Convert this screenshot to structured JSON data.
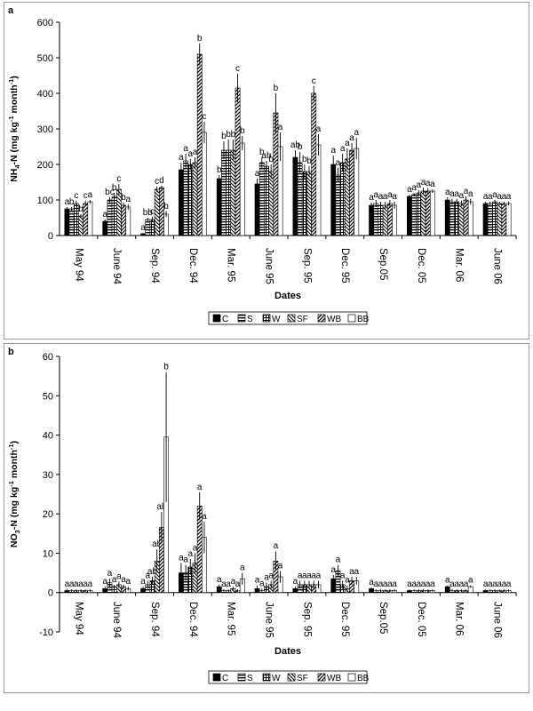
{
  "chart_data": [
    {
      "panel": "a",
      "type": "bar",
      "ylabel": "NH4-N (mg kg-1 month-1)",
      "xlabel": "Dates",
      "ylim": [
        0,
        600
      ],
      "yticks": [
        0,
        100,
        200,
        300,
        400,
        500,
        600
      ],
      "grid": false,
      "legend_position": "bottom",
      "categories": [
        "May 94",
        "June 94",
        "Sep. 94",
        "Dec. 94",
        "Mar. 95",
        "June 95",
        "Sep. 95",
        "Dec. 95",
        "Sep.05",
        "Dec. 05",
        "Mar. 06",
        "June 06"
      ],
      "series": [
        {
          "name": "C",
          "values": [
            75,
            40,
            5,
            185,
            160,
            145,
            220,
            200,
            85,
            110,
            100,
            90
          ],
          "errors": [
            5,
            5,
            3,
            20,
            10,
            15,
            20,
            25,
            8,
            5,
            8,
            5
          ]
        },
        {
          "name": "S",
          "values": [
            75,
            100,
            45,
            210,
            240,
            205,
            205,
            170,
            90,
            115,
            95,
            90
          ],
          "errors": [
            5,
            8,
            5,
            20,
            25,
            15,
            30,
            20,
            10,
            5,
            8,
            5
          ]
        },
        {
          "name": "W",
          "values": [
            90,
            110,
            45,
            200,
            240,
            195,
            180,
            205,
            85,
            120,
            95,
            95
          ],
          "errors": [
            8,
            10,
            8,
            15,
            30,
            15,
            20,
            25,
            10,
            8,
            8,
            5
          ]
        },
        {
          "name": "SF",
          "values": [
            55,
            130,
            130,
            205,
            240,
            180,
            180,
            215,
            85,
            125,
            90,
            90
          ],
          "errors": [
            5,
            15,
            8,
            15,
            30,
            20,
            15,
            30,
            10,
            10,
            8,
            5
          ]
        },
        {
          "name": "WB",
          "values": [
            90,
            85,
            135,
            510,
            415,
            345,
            400,
            240,
            90,
            125,
            100,
            90
          ],
          "errors": [
            8,
            8,
            5,
            30,
            40,
            55,
            20,
            20,
            10,
            8,
            10,
            5
          ]
        },
        {
          "name": "BB",
          "values": [
            95,
            80,
            60,
            290,
            260,
            250,
            255,
            245,
            85,
            125,
            95,
            90
          ],
          "errors": [
            5,
            8,
            8,
            30,
            20,
            40,
            30,
            30,
            10,
            5,
            8,
            5
          ]
        }
      ],
      "annotations": [
        [
          "a",
          "b",
          "c",
          "b",
          "c",
          "a"
        ],
        [
          "a",
          "bc",
          "b",
          "c",
          "b",
          "a"
        ],
        [
          "a",
          "bb",
          "c",
          "c",
          "d",
          "b"
        ],
        [
          "a",
          "a",
          "a",
          "a",
          "b",
          "c"
        ],
        [
          "b",
          "b",
          "b",
          "b",
          "c",
          "b"
        ],
        [
          "a",
          "b",
          "ab",
          "b",
          "b",
          "a"
        ],
        [
          "ab",
          "b",
          "b",
          "b",
          "c",
          "a"
        ],
        [
          "a",
          "a",
          "a",
          "a",
          "a",
          "a"
        ],
        [
          "a",
          "a",
          "a",
          "a",
          "a",
          "a"
        ],
        [
          "a",
          "a",
          "a",
          "a",
          "a",
          "a"
        ],
        [
          "a",
          "a",
          "a",
          "a",
          "a",
          "a"
        ],
        [
          "a",
          "a",
          "a",
          "a",
          "a",
          "a"
        ]
      ]
    },
    {
      "panel": "b",
      "type": "bar",
      "ylabel": "NO3-N (mg kg-1 month-1)",
      "xlabel": "Dates",
      "ylim": [
        -10,
        60
      ],
      "yticks": [
        -10,
        0,
        10,
        20,
        30,
        40,
        50,
        60
      ],
      "grid": false,
      "legend_position": "bottom",
      "categories": [
        "May 94",
        "June 94",
        "Sep. 94",
        "Dec. 94",
        "Mar. 95",
        "June 95",
        "Sep. 95",
        "Dec. 95",
        "Sep.05",
        "Dec. 05",
        "Mar. 06",
        "June 06"
      ],
      "series": [
        {
          "name": "C",
          "values": [
            0.5,
            1,
            1,
            5,
            1.5,
            1,
            1,
            3.5,
            1,
            0.5,
            1.5,
            0.5
          ],
          "errors": [
            0.3,
            0.5,
            0.5,
            2.5,
            0.5,
            0.8,
            0.5,
            1,
            0.3,
            0.3,
            0.3,
            0.3
          ]
        },
        {
          "name": "S",
          "values": [
            0.5,
            2.5,
            2,
            5,
            0.5,
            0.5,
            2,
            5.5,
            0.5,
            0.5,
            0.5,
            0.5
          ],
          "errors": [
            0.3,
            1,
            1,
            2,
            0.3,
            0.5,
            1,
            1.5,
            0.3,
            0.3,
            0.3,
            0.3
          ]
        },
        {
          "name": "W",
          "values": [
            0.5,
            1.5,
            3,
            6.5,
            0.5,
            1.5,
            2,
            2,
            0.5,
            0.5,
            0.5,
            0.5
          ],
          "errors": [
            0.3,
            0.5,
            1,
            2,
            0.3,
            1,
            1,
            1,
            0.3,
            0.3,
            0.3,
            0.3
          ]
        },
        {
          "name": "SF",
          "values": [
            0.5,
            2,
            8,
            7.5,
            1,
            2,
            2,
            1,
            0.5,
            0.5,
            0.5,
            0.5
          ],
          "errors": [
            0.3,
            0.8,
            3,
            2.5,
            0.5,
            1,
            1,
            0.8,
            0.3,
            0.3,
            0.3,
            0.3
          ]
        },
        {
          "name": "WB",
          "values": [
            0.5,
            1.5,
            16.5,
            22,
            0.5,
            8,
            2,
            3,
            0.5,
            0.5,
            0.5,
            0.5
          ],
          "errors": [
            0.3,
            0.5,
            4,
            3.5,
            0.3,
            2.5,
            1,
            1,
            0.3,
            0.3,
            0.3,
            0.3
          ]
        },
        {
          "name": "BB",
          "values": [
            0.5,
            1,
            39.5,
            14,
            3.5,
            4,
            2,
            3,
            0.5,
            0.5,
            1.5,
            0.5
          ],
          "errors": [
            0.3,
            0.5,
            16.5,
            4,
            1.5,
            1.5,
            1,
            1,
            0.3,
            0.3,
            0.3,
            0.3
          ]
        }
      ],
      "annotations": [
        [
          "a",
          "a",
          "a",
          "a",
          "a",
          "a"
        ],
        [
          "a",
          "a",
          "a",
          "a",
          "a",
          "a"
        ],
        [
          "a",
          "a",
          "ab",
          "ab",
          "ab",
          "b"
        ],
        [
          "a",
          "a",
          "a",
          "a",
          "a",
          "a"
        ],
        [
          "a",
          "a",
          "a",
          "a",
          "a",
          "a"
        ],
        [
          "a",
          "a",
          "a",
          "a",
          "a",
          "a"
        ],
        [
          "a",
          "a",
          "a",
          "a",
          "a",
          "a"
        ],
        [
          "a",
          "a",
          "a",
          "a",
          "a",
          "a"
        ],
        [
          "a",
          "a",
          "a",
          "a",
          "a",
          "a"
        ],
        [
          "a",
          "a",
          "a",
          "a",
          "a",
          "a"
        ],
        [
          "a",
          "a",
          "a",
          "a",
          "a",
          "a"
        ],
        [
          "a",
          "a",
          "a",
          "a",
          "a",
          "a"
        ]
      ]
    }
  ],
  "panels": {
    "a": {
      "letter": "a"
    },
    "b": {
      "letter": "b"
    }
  },
  "legend": {
    "items": [
      {
        "label": "C",
        "pattern": "solid"
      },
      {
        "label": "S",
        "pattern": "hlines"
      },
      {
        "label": "W",
        "pattern": "grid"
      },
      {
        "label": "SF",
        "pattern": "backdiag"
      },
      {
        "label": "WB",
        "pattern": "fwddiag"
      },
      {
        "label": "BB",
        "pattern": "empty"
      }
    ]
  }
}
